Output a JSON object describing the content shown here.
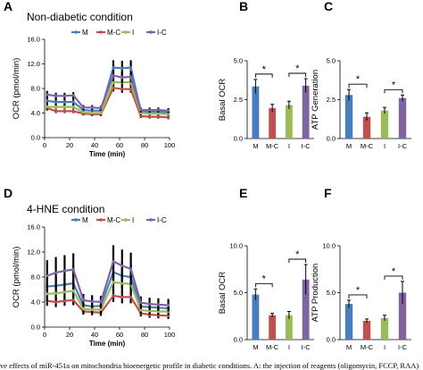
{
  "caption": "ve effects of miR-451a on mitochondria bioenergetic profile in diabetic conditions. A: the injection of reagents (oligomycin, FCCP, RAA)",
  "colors": {
    "M": "#4a7ebb",
    "M-C": "#c0504d",
    "I": "#9bbb59",
    "I-C": "#8064a2"
  },
  "chart_data": [
    {
      "panel": "A",
      "type": "line",
      "title": "Non-diabetic condition",
      "xlabel": "Time (min)",
      "ylabel": "OCR (pmol/min)",
      "xlim": [
        0,
        100
      ],
      "ylim": [
        0,
        16
      ],
      "xticks": [
        "0",
        "20",
        "40",
        "60",
        "80",
        "100"
      ],
      "yticks": [
        "0.0",
        "4.0",
        "8.0",
        "12.0",
        "16.0"
      ],
      "legend": [
        "M",
        "M-C",
        "I",
        "I-C"
      ],
      "legend_position": "top",
      "x": [
        2,
        9,
        16,
        23,
        31,
        38,
        45,
        55,
        62,
        69,
        77,
        84,
        91,
        99
      ],
      "series": [
        {
          "name": "M",
          "values": [
            6.0,
            5.8,
            5.8,
            5.8,
            4.5,
            4.4,
            4.4,
            11.4,
            11.3,
            11.4,
            4.3,
            4.2,
            4.2,
            4.1
          ],
          "errors": [
            0.7,
            0.6,
            0.6,
            0.6,
            0.4,
            0.4,
            0.4,
            1.2,
            1.2,
            1.2,
            0.4,
            0.4,
            0.4,
            0.4
          ]
        },
        {
          "name": "M-C",
          "values": [
            4.8,
            4.3,
            4.3,
            4.3,
            3.9,
            3.8,
            3.8,
            8.1,
            7.9,
            7.9,
            3.5,
            3.4,
            3.4,
            3.3
          ],
          "errors": [
            0.4,
            0.3,
            0.3,
            0.3,
            0.3,
            0.3,
            0.3,
            0.6,
            0.6,
            0.6,
            0.3,
            0.3,
            0.3,
            0.3
          ]
        },
        {
          "name": "I",
          "values": [
            5.0,
            5.0,
            5.0,
            5.0,
            4.1,
            4.0,
            4.0,
            9.0,
            9.0,
            9.0,
            4.0,
            3.9,
            3.9,
            3.8
          ],
          "errors": [
            0.3,
            0.3,
            0.3,
            0.3,
            0.3,
            0.3,
            0.3,
            0.5,
            0.5,
            0.5,
            0.3,
            0.3,
            0.3,
            0.3
          ]
        },
        {
          "name": "I-C",
          "values": [
            7.0,
            6.8,
            6.8,
            6.9,
            4.9,
            4.9,
            4.8,
            10.1,
            9.8,
            9.9,
            4.5,
            4.5,
            4.5,
            4.4
          ],
          "errors": [
            0.6,
            0.5,
            0.5,
            0.5,
            0.4,
            0.4,
            0.4,
            0.9,
            0.9,
            0.9,
            0.4,
            0.4,
            0.4,
            0.4
          ]
        }
      ]
    },
    {
      "panel": "B",
      "type": "bar",
      "ylabel": "Basal OCR",
      "ylim": [
        0,
        5
      ],
      "yticks": [
        "0.0",
        "2.5",
        "5.0"
      ],
      "categories": [
        "M",
        "M-C",
        "I",
        "I-C"
      ],
      "values": [
        3.35,
        1.95,
        2.15,
        3.4
      ],
      "errors": [
        0.45,
        0.25,
        0.25,
        0.45
      ],
      "significance": [
        {
          "pair": [
            "M",
            "M-C"
          ],
          "label": "*"
        },
        {
          "pair": [
            "I",
            "I-C"
          ],
          "label": "*"
        }
      ]
    },
    {
      "panel": "C",
      "type": "bar",
      "ylabel": "ATP Generation",
      "ylim": [
        0,
        5
      ],
      "yticks": [
        "0.0",
        "2.5",
        "5.0"
      ],
      "categories": [
        "M",
        "M-C",
        "I",
        "I-C"
      ],
      "values": [
        2.8,
        1.4,
        1.8,
        2.6
      ],
      "errors": [
        0.35,
        0.25,
        0.2,
        0.2
      ],
      "significance": [
        {
          "pair": [
            "M",
            "M-C"
          ],
          "label": "*"
        },
        {
          "pair": [
            "I",
            "I-C"
          ],
          "label": "*"
        }
      ]
    },
    {
      "panel": "D",
      "type": "line",
      "title": "4-HNE condition",
      "xlabel": "Time (min)",
      "ylabel": "OCR (pmol/min)",
      "xlim": [
        0,
        100
      ],
      "ylim": [
        0,
        16
      ],
      "xticks": [
        "0",
        "20",
        "40",
        "60",
        "80",
        "100"
      ],
      "yticks": [
        "0.0",
        "4.0",
        "8.0",
        "12.0",
        "16.0"
      ],
      "legend": [
        "M",
        "M-C",
        "I",
        "I-C"
      ],
      "legend_position": "top",
      "x": [
        2,
        9,
        16,
        23,
        31,
        38,
        45,
        55,
        62,
        69,
        77,
        84,
        91,
        99
      ],
      "series": [
        {
          "name": "M",
          "values": [
            6.5,
            6.6,
            6.8,
            7.0,
            3.5,
            3.3,
            3.4,
            8.8,
            8.2,
            8.0,
            3.3,
            3.2,
            3.1,
            3.0
          ],
          "errors": [
            1.5,
            1.5,
            1.5,
            1.5,
            0.9,
            0.8,
            0.8,
            2.0,
            2.0,
            2.0,
            0.8,
            0.7,
            0.7,
            0.7
          ]
        },
        {
          "name": "M-C",
          "values": [
            4.2,
            4.0,
            4.2,
            4.3,
            2.5,
            2.4,
            2.3,
            5.0,
            4.8,
            4.8,
            2.2,
            2.0,
            1.9,
            1.8
          ],
          "errors": [
            0.8,
            0.8,
            0.8,
            0.8,
            0.5,
            0.5,
            0.5,
            1.0,
            1.0,
            1.0,
            0.5,
            0.5,
            0.5,
            0.5
          ]
        },
        {
          "name": "I",
          "values": [
            5.3,
            5.4,
            5.6,
            5.8,
            2.9,
            2.8,
            2.8,
            7.2,
            7.0,
            6.9,
            2.7,
            2.6,
            2.5,
            2.5
          ],
          "errors": [
            1.2,
            1.2,
            1.2,
            1.2,
            0.7,
            0.7,
            0.7,
            1.5,
            1.5,
            1.5,
            0.6,
            0.6,
            0.6,
            0.6
          ]
        },
        {
          "name": "I-C",
          "values": [
            8.2,
            8.7,
            9.0,
            9.2,
            4.3,
            4.1,
            4.0,
            10.5,
            9.8,
            9.3,
            3.9,
            3.7,
            3.6,
            3.5
          ],
          "errors": [
            2.5,
            2.5,
            2.5,
            2.6,
            1.0,
            1.0,
            1.0,
            2.6,
            2.6,
            2.6,
            1.0,
            1.0,
            1.0,
            1.0
          ]
        }
      ]
    },
    {
      "panel": "E",
      "type": "bar",
      "ylabel": "Basal OCR",
      "ylim": [
        0,
        10
      ],
      "yticks": [
        "0.0",
        "5.0",
        "10.0"
      ],
      "categories": [
        "M",
        "M-C",
        "I",
        "I-C"
      ],
      "values": [
        4.8,
        2.6,
        2.6,
        6.4
      ],
      "errors": [
        0.6,
        0.2,
        0.4,
        1.6
      ],
      "significance": [
        {
          "pair": [
            "M",
            "M-C"
          ],
          "label": "*"
        },
        {
          "pair": [
            "I",
            "I-C"
          ],
          "label": "*"
        }
      ]
    },
    {
      "panel": "F",
      "type": "bar",
      "ylabel": "ATP Production",
      "ylim": [
        0,
        10
      ],
      "yticks": [
        "0.0",
        "5.0",
        "10.0"
      ],
      "categories": [
        "M",
        "M-C",
        "I",
        "I-C"
      ],
      "values": [
        3.8,
        2.0,
        2.3,
        5.0
      ],
      "errors": [
        0.4,
        0.2,
        0.3,
        1.2
      ],
      "significance": [
        {
          "pair": [
            "M",
            "M-C"
          ],
          "label": "*"
        },
        {
          "pair": [
            "I",
            "I-C"
          ],
          "label": "*"
        }
      ]
    }
  ]
}
